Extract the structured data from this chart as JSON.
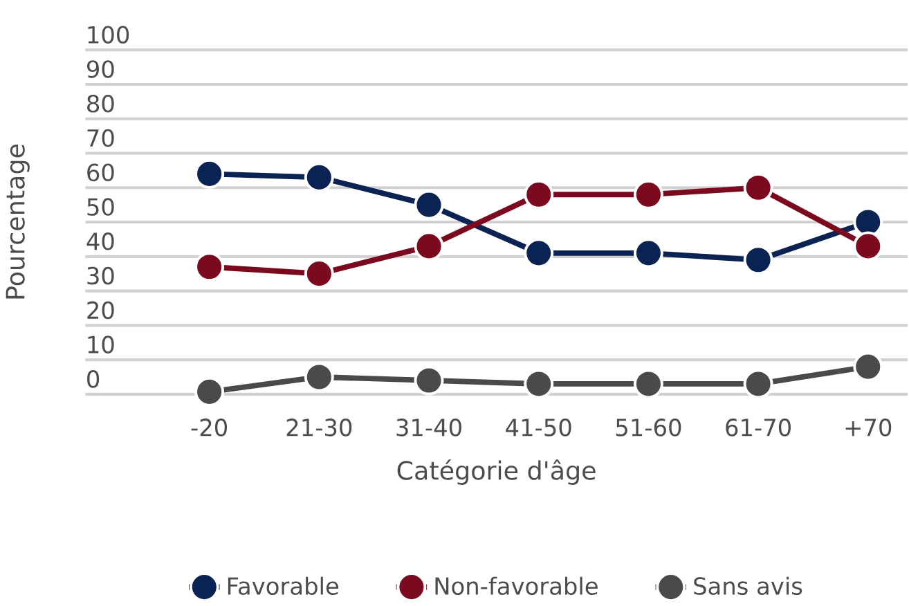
{
  "chart_data": {
    "type": "line",
    "xlabel": "Catégorie d'âge",
    "ylabel": "Pourcentage",
    "categories": [
      "-20",
      "21-30",
      "31-40",
      "41-50",
      "51-60",
      "61-70",
      "+70"
    ],
    "series": [
      {
        "name": "Favorable",
        "color": "#0b2352",
        "values": [
          64,
          63,
          55,
          41,
          41,
          39,
          50
        ]
      },
      {
        "name": "Non-favorable",
        "color": "#7b0a1e",
        "values": [
          37,
          35,
          43,
          58,
          58,
          60,
          43
        ]
      },
      {
        "name": "Sans avis",
        "color": "#4a4a4a",
        "values": [
          0.7,
          5,
          4,
          3,
          3,
          3,
          8
        ]
      }
    ],
    "ylim": [
      0,
      100
    ],
    "yticks": [
      0,
      10,
      20,
      30,
      40,
      50,
      60,
      70,
      80,
      90,
      100
    ],
    "grid": "y",
    "legend": "bottom",
    "marker": "circle",
    "line_style": "solid"
  }
}
